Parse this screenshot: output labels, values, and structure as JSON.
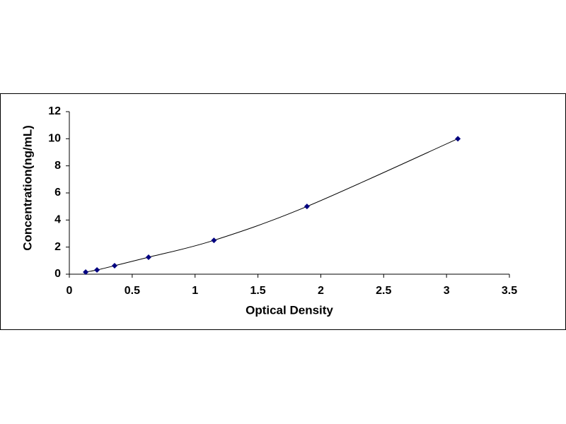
{
  "chart_data": {
    "type": "scatter",
    "line": true,
    "x_label": "Optical Density",
    "y_label": "Concentration(ng/mL)",
    "x": [
      0.13,
      0.22,
      0.36,
      0.63,
      1.15,
      1.89,
      3.09
    ],
    "values": [
      0.156,
      0.312,
      0.625,
      1.25,
      2.5,
      5,
      10
    ],
    "color": "#000080",
    "line_color": "#000000",
    "xlim": [
      0,
      3.5
    ],
    "xticks": [
      0,
      0.5,
      1,
      1.5,
      2,
      2.5,
      3,
      3.5
    ],
    "ylim": [
      0,
      12
    ],
    "yticks": [
      0,
      2,
      4,
      6,
      8,
      10,
      12
    ],
    "grid": false
  }
}
